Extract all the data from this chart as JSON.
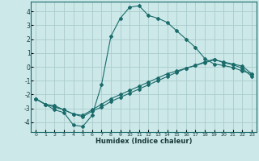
{
  "xlabel": "Humidex (Indice chaleur)",
  "xlim": [
    -0.5,
    23.5
  ],
  "ylim": [
    -4.7,
    4.7
  ],
  "xticks": [
    0,
    1,
    2,
    3,
    4,
    5,
    6,
    7,
    8,
    9,
    10,
    11,
    12,
    13,
    14,
    15,
    16,
    17,
    18,
    19,
    20,
    21,
    22,
    23
  ],
  "yticks": [
    -4,
    -3,
    -2,
    -1,
    0,
    1,
    2,
    3,
    4
  ],
  "bg_color": "#cce8e8",
  "grid_color": "#aacccc",
  "line_color": "#1a6b6b",
  "line1_x": [
    0,
    1,
    2,
    3,
    4,
    5,
    6,
    7,
    8,
    9,
    10,
    11,
    12,
    13,
    14,
    15,
    16,
    17,
    18,
    19,
    20,
    21,
    22,
    23
  ],
  "line1_y": [
    -2.3,
    -2.7,
    -3.1,
    -3.3,
    -4.2,
    -4.3,
    -3.5,
    -1.3,
    2.2,
    3.5,
    4.3,
    4.4,
    3.7,
    3.5,
    3.2,
    2.6,
    2.0,
    1.4,
    0.6,
    0.2,
    0.1,
    -0.05,
    -0.3,
    -0.5
  ],
  "line2_x": [
    0,
    1,
    2,
    3,
    4,
    5,
    6,
    7,
    8,
    9,
    10,
    11,
    12,
    13,
    14,
    15,
    16,
    17,
    18,
    19,
    20,
    21,
    22,
    23
  ],
  "line2_y": [
    -2.3,
    -2.7,
    -2.8,
    -3.1,
    -3.4,
    -3.5,
    -3.1,
    -2.7,
    -2.3,
    -2.0,
    -1.7,
    -1.4,
    -1.1,
    -0.8,
    -0.5,
    -0.3,
    -0.1,
    0.1,
    0.3,
    0.5,
    0.35,
    0.2,
    0.05,
    -0.5
  ],
  "line3_x": [
    0,
    1,
    2,
    3,
    4,
    5,
    6,
    7,
    8,
    9,
    10,
    11,
    12,
    13,
    14,
    15,
    16,
    17,
    18,
    19,
    20,
    21,
    22,
    23
  ],
  "line3_y": [
    -2.3,
    -2.7,
    -2.9,
    -3.1,
    -3.4,
    -3.6,
    -3.2,
    -2.9,
    -2.5,
    -2.2,
    -1.9,
    -1.6,
    -1.3,
    -1.0,
    -0.7,
    -0.4,
    -0.1,
    0.1,
    0.35,
    0.55,
    0.3,
    0.15,
    -0.1,
    -0.7
  ]
}
